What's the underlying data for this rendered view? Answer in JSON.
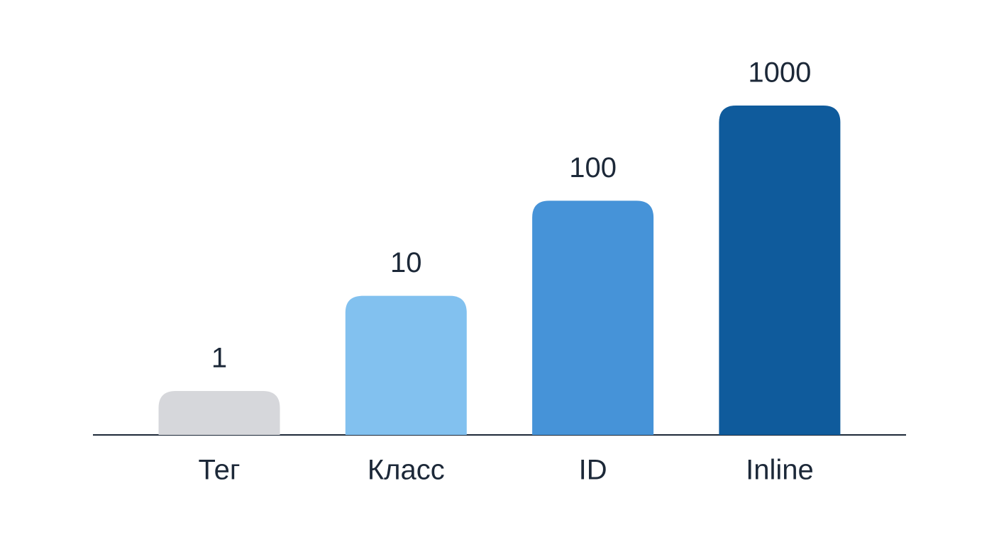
{
  "chart_data": {
    "type": "bar",
    "log": true,
    "categories": [
      "Тег",
      "Класс",
      "ID",
      "Inline"
    ],
    "values": [
      1,
      10,
      100,
      1000
    ],
    "colors": [
      "#d6d7db",
      "#82c1ef",
      "#4693d8",
      "#0f5b9c"
    ]
  }
}
